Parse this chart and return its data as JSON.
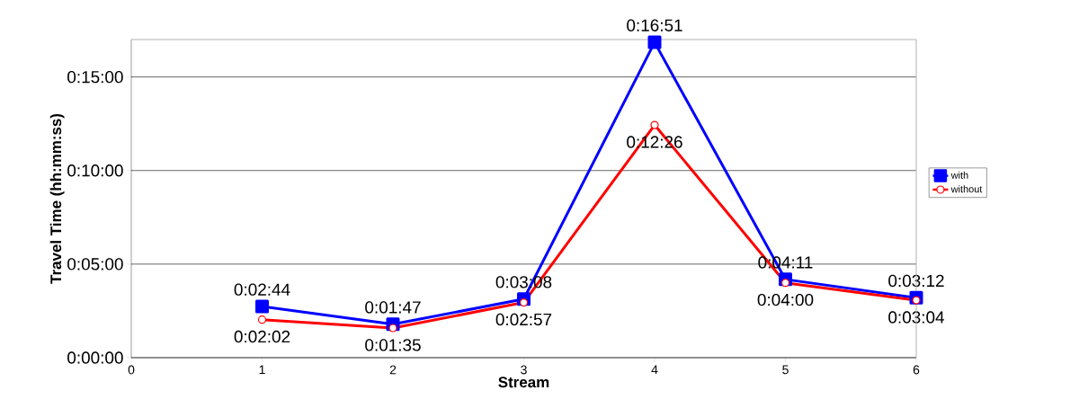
{
  "chart_data": {
    "type": "line",
    "xlabel": "Stream",
    "ylabel": "Travel Time (hh:mm:ss)",
    "x": [
      1,
      2,
      3,
      4,
      5,
      6
    ],
    "series": [
      {
        "name": "with",
        "color": "#0000ff",
        "marker": "square",
        "values": [
          164,
          107,
          188,
          1011,
          251,
          192
        ],
        "value_labels": [
          "0:02:44",
          "0:01:47",
          "0:03:08",
          "0:16:51",
          "0:04:11",
          "0:03:12"
        ]
      },
      {
        "name": "without",
        "color": "#ff0000",
        "marker": "circle",
        "values": [
          122,
          95,
          177,
          746,
          240,
          184
        ],
        "value_labels": [
          "0:02:02",
          "0:01:35",
          "0:02:57",
          "0:12:26",
          "0:04:00",
          "0:03:04"
        ]
      }
    ],
    "xlim": [
      0,
      6
    ],
    "xticks": [
      0,
      1,
      2,
      3,
      4,
      5,
      6
    ],
    "ylim": [
      0,
      1020
    ],
    "yticks": [
      {
        "value": 0,
        "label": "0:00:00"
      },
      {
        "value": 300,
        "label": "0:05:00"
      },
      {
        "value": 600,
        "label": "0:10:00"
      },
      {
        "value": 900,
        "label": "0:15:00"
      }
    ],
    "grid": "y",
    "legend": "right",
    "line_style": "solid"
  }
}
